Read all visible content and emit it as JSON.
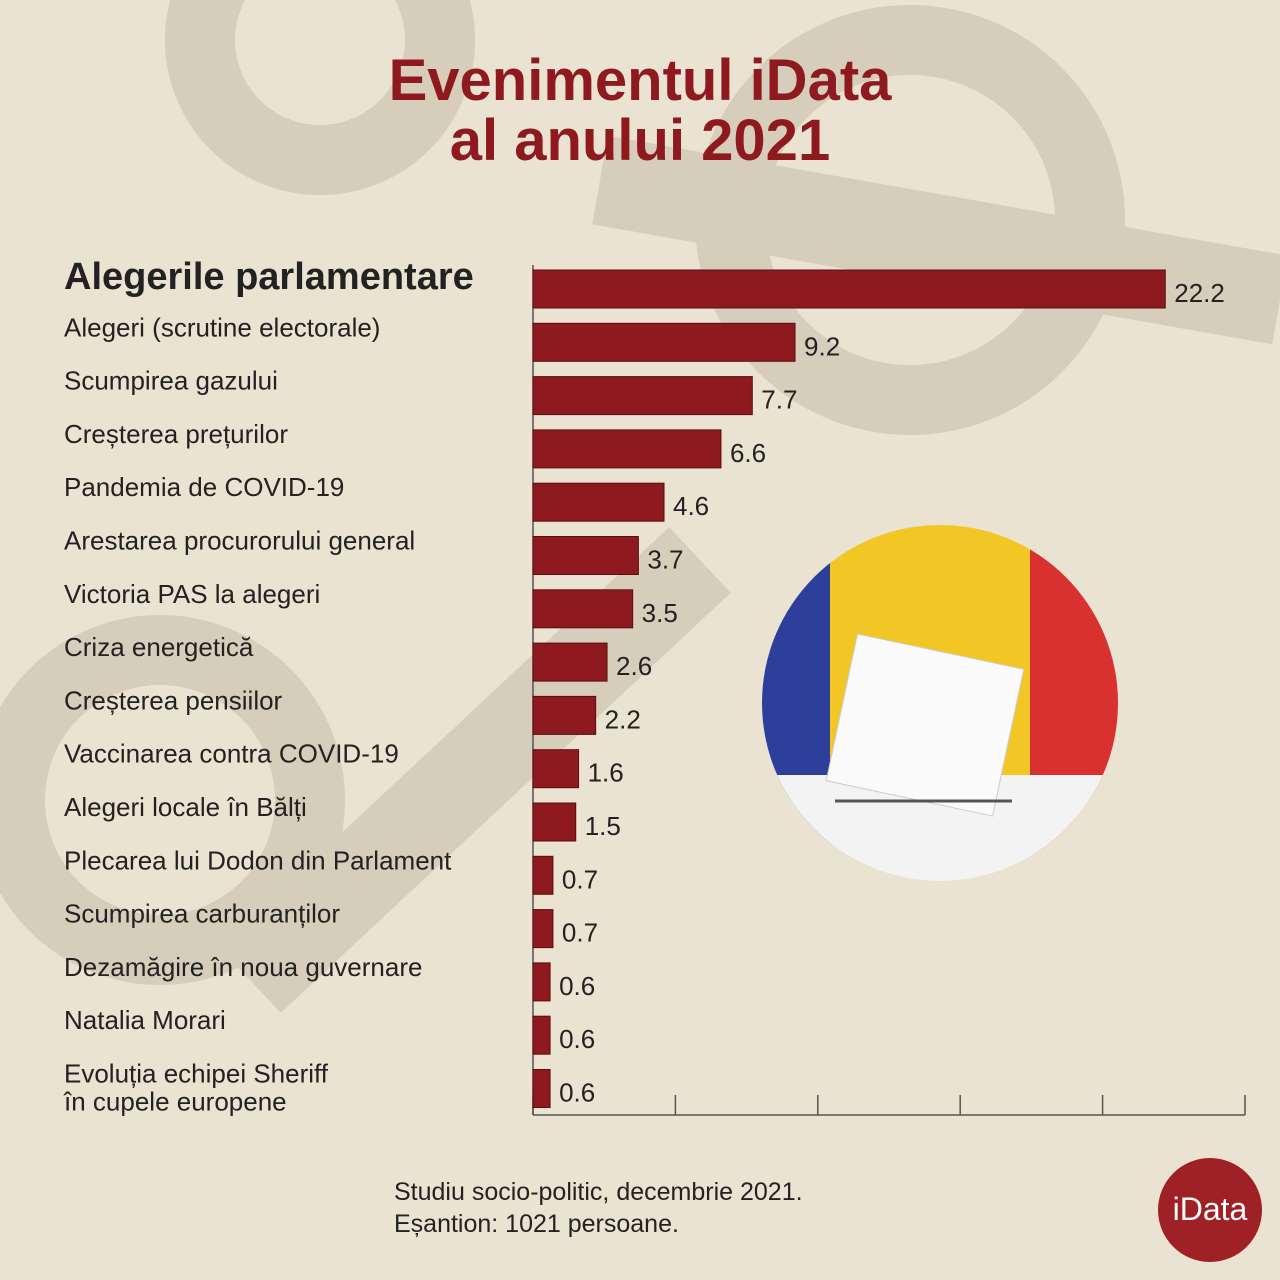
{
  "chart_data": {
    "type": "hbar",
    "title": "Evenimentul iData\nal anului 2021",
    "categories": [
      "Alegerile parlamentare",
      "Alegeri (scrutine electorale)",
      "Scumpirea gazului",
      "Creșterea prețurilor",
      "Pandemia de COVID-19",
      "Arestarea procurorului general",
      "Victoria PAS la alegeri",
      "Criza energetică",
      "Creșterea pensiilor",
      "Vaccinarea contra COVID-19",
      "Alegeri locale în Bălți",
      "Plecarea lui Dodon din Parlament",
      "Scumpirea carburanților",
      "Dezamăgire în noua guvernare",
      "Natalia Morari",
      "Evoluția echipei Sheriff\nîn cupele europene"
    ],
    "values": [
      22.2,
      9.2,
      7.7,
      6.6,
      4.6,
      3.7,
      3.5,
      2.6,
      2.2,
      1.6,
      1.5,
      0.7,
      0.7,
      0.6,
      0.6,
      0.6
    ],
    "color": "#8e1a1f",
    "xlim": [
      0,
      25
    ],
    "xticks": [
      0,
      5,
      10,
      15,
      20,
      25
    ],
    "note": "Studiu socio-politic, decembrie 2021.\nEșantion: 1021 persoane.",
    "logo": "iData"
  }
}
